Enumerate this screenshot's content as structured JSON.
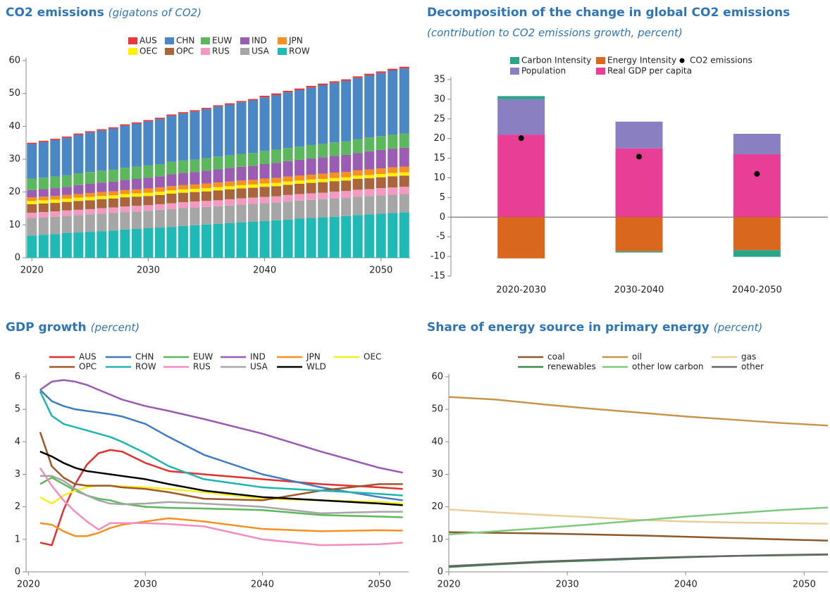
{
  "chart_data": [
    {
      "type": "bar",
      "stacked": true,
      "title": "CO2 emissions",
      "subtitle": "(gigatons of CO2)",
      "x": [
        2020,
        2021,
        2022,
        2023,
        2024,
        2025,
        2026,
        2027,
        2028,
        2029,
        2030,
        2031,
        2032,
        2033,
        2034,
        2035,
        2036,
        2037,
        2038,
        2039,
        2040,
        2041,
        2042,
        2043,
        2044,
        2045,
        2046,
        2047,
        2048,
        2049,
        2050,
        2051,
        2052
      ],
      "xlim": [
        2019.5,
        2052.5
      ],
      "xticks": [
        2020,
        2030,
        2040,
        2050
      ],
      "ylim": [
        0,
        60
      ],
      "yticks": [
        0,
        10,
        20,
        30,
        40,
        50,
        60
      ],
      "series": [
        {
          "name": "AUS",
          "color": "#e8373a",
          "values": [
            0.4,
            0.4,
            0.4,
            0.4,
            0.4,
            0.4,
            0.4,
            0.4,
            0.4,
            0.4,
            0.4,
            0.4,
            0.4,
            0.4,
            0.4,
            0.4,
            0.4,
            0.4,
            0.4,
            0.4,
            0.5,
            0.5,
            0.5,
            0.5,
            0.5,
            0.5,
            0.5,
            0.5,
            0.5,
            0.5,
            0.5,
            0.5,
            0.5
          ]
        },
        {
          "name": "CHN",
          "color": "#4a87c4",
          "values": [
            10.5,
            10.8,
            11.1,
            11.4,
            11.7,
            12.0,
            12.2,
            12.5,
            12.8,
            13.1,
            13.4,
            13.7,
            14.0,
            14.3,
            14.6,
            14.9,
            15.2,
            15.4,
            15.7,
            16.0,
            16.3,
            16.6,
            16.9,
            17.2,
            17.5,
            17.8,
            18.1,
            18.4,
            18.6,
            18.9,
            19.2,
            19.5,
            19.8
          ]
        },
        {
          "name": "EUW",
          "color": "#5cb85c",
          "values": [
            3.5,
            3.5,
            3.5,
            3.5,
            3.6,
            3.6,
            3.6,
            3.6,
            3.7,
            3.7,
            3.7,
            3.7,
            3.8,
            3.8,
            3.8,
            3.8,
            3.9,
            3.9,
            3.9,
            3.9,
            4.0,
            4.0,
            4.0,
            4.0,
            4.1,
            4.1,
            4.1,
            4.1,
            4.2,
            4.2,
            4.2,
            4.3,
            4.3
          ]
        },
        {
          "name": "IND",
          "color": "#9a5db3",
          "values": [
            2.2,
            2.3,
            2.4,
            2.5,
            2.7,
            2.8,
            2.9,
            3.0,
            3.1,
            3.2,
            3.3,
            3.4,
            3.6,
            3.7,
            3.8,
            3.9,
            4.0,
            4.1,
            4.2,
            4.3,
            4.4,
            4.6,
            4.7,
            4.8,
            4.9,
            5.0,
            5.1,
            5.2,
            5.3,
            5.5,
            5.6,
            5.7,
            5.8
          ]
        },
        {
          "name": "JPN",
          "color": "#f7901e",
          "values": [
            1.1,
            1.1,
            1.1,
            1.1,
            1.1,
            1.2,
            1.2,
            1.2,
            1.2,
            1.2,
            1.3,
            1.3,
            1.3,
            1.3,
            1.3,
            1.4,
            1.4,
            1.4,
            1.4,
            1.4,
            1.5,
            1.5,
            1.5,
            1.5,
            1.5,
            1.6,
            1.6,
            1.6,
            1.6,
            1.7,
            1.7,
            1.7,
            1.7
          ]
        },
        {
          "name": "OEC",
          "color": "#fff200",
          "values": [
            1.0,
            1.0,
            1.0,
            1.0,
            1.0,
            1.0,
            1.0,
            1.0,
            1.0,
            1.0,
            1.0,
            1.0,
            1.0,
            1.0,
            1.0,
            1.0,
            1.0,
            1.0,
            1.0,
            1.0,
            1.0,
            1.0,
            1.0,
            1.0,
            1.0,
            1.0,
            1.0,
            1.0,
            1.0,
            1.0,
            1.0,
            1.0,
            1.0
          ]
        },
        {
          "name": "OPC",
          "color": "#a9663e",
          "values": [
            2.6,
            2.6,
            2.6,
            2.6,
            2.7,
            2.7,
            2.7,
            2.7,
            2.8,
            2.8,
            2.8,
            2.8,
            2.9,
            2.9,
            2.9,
            2.9,
            3.0,
            3.0,
            3.0,
            3.0,
            3.1,
            3.1,
            3.1,
            3.1,
            3.2,
            3.2,
            3.2,
            3.2,
            3.3,
            3.3,
            3.3,
            3.4,
            3.4
          ]
        },
        {
          "name": "RUS",
          "color": "#f49ac1",
          "values": [
            1.6,
            1.6,
            1.6,
            1.6,
            1.6,
            1.6,
            1.7,
            1.7,
            1.7,
            1.7,
            1.7,
            1.7,
            1.8,
            1.8,
            1.8,
            1.8,
            1.8,
            1.9,
            1.9,
            1.9,
            1.9,
            1.9,
            2.0,
            2.0,
            2.0,
            2.0,
            2.1,
            2.1,
            2.1,
            2.1,
            2.2,
            2.2,
            2.2
          ]
        },
        {
          "name": "USA",
          "color": "#a6a6a6",
          "values": [
            5.3,
            5.3,
            5.3,
            5.3,
            5.3,
            5.3,
            5.3,
            5.3,
            5.3,
            5.3,
            5.3,
            5.4,
            5.4,
            5.4,
            5.4,
            5.4,
            5.4,
            5.4,
            5.4,
            5.4,
            5.4,
            5.4,
            5.5,
            5.5,
            5.5,
            5.5,
            5.5,
            5.5,
            5.6,
            5.6,
            5.6,
            5.6,
            5.6
          ]
        },
        {
          "name": "ROW",
          "color": "#1fbab6",
          "values": [
            6.8,
            7.0,
            7.2,
            7.5,
            7.7,
            7.9,
            8.1,
            8.3,
            8.6,
            8.8,
            9.0,
            9.2,
            9.4,
            9.7,
            9.9,
            10.1,
            10.3,
            10.5,
            10.8,
            11.0,
            11.2,
            11.4,
            11.6,
            11.9,
            12.1,
            12.3,
            12.5,
            12.7,
            13.0,
            13.2,
            13.4,
            13.6,
            13.8
          ]
        }
      ]
    },
    {
      "type": "bar",
      "stacked": true,
      "title": "Decomposition of the change in global CO2 emissions",
      "subtitle": "(contribution to CO2 emissions growth, percent)",
      "categories": [
        "2020-2030",
        "2030-2040",
        "2040-2050"
      ],
      "ylim": [
        -15,
        35
      ],
      "yticks": [
        -15,
        -10,
        -5,
        0,
        5,
        10,
        15,
        20,
        25,
        30,
        35
      ],
      "series": [
        {
          "name": "Real GDP per capita",
          "color": "#e83e96",
          "values": [
            21.0,
            17.5,
            16.0
          ]
        },
        {
          "name": "Population",
          "color": "#8a7fc0",
          "values": [
            9.0,
            6.8,
            5.2
          ]
        },
        {
          "name": "Energy Intensity",
          "color": "#d9681e",
          "values": [
            -10.5,
            -8.7,
            -8.4
          ]
        },
        {
          "name": "Carbon Intensity",
          "color": "#2aa58a",
          "values": [
            0.8,
            -0.3,
            -1.7
          ]
        }
      ],
      "points": {
        "name": "CO2 emissions",
        "color": "#000000",
        "values": [
          20.1,
          15.4,
          11.0
        ]
      }
    },
    {
      "type": "line",
      "title": "GDP growth",
      "subtitle": "(percent)",
      "x": [
        2021,
        2022,
        2023,
        2024,
        2025,
        2026,
        2027,
        2028,
        2030,
        2032,
        2035,
        2040,
        2045,
        2050,
        2052
      ],
      "xlim": [
        2019.8,
        2052.5
      ],
      "xticks": [
        2020,
        2030,
        2040,
        2050
      ],
      "ylim": [
        0,
        6
      ],
      "yticks": [
        0,
        1,
        2,
        3,
        4,
        5,
        6
      ],
      "series": [
        {
          "name": "AUS",
          "color": "#e2312f",
          "values": [
            0.9,
            0.82,
            1.9,
            2.7,
            3.3,
            3.65,
            3.75,
            3.7,
            3.35,
            3.1,
            3.0,
            2.85,
            2.7,
            2.6,
            2.55
          ]
        },
        {
          "name": "CHN",
          "color": "#3e7cc1",
          "values": [
            5.6,
            5.25,
            5.1,
            5.0,
            4.95,
            4.9,
            4.85,
            4.78,
            4.55,
            4.15,
            3.6,
            3.0,
            2.6,
            2.3,
            2.2
          ]
        },
        {
          "name": "EUW",
          "color": "#5cb85c",
          "values": [
            2.7,
            2.9,
            2.7,
            2.5,
            2.35,
            2.25,
            2.2,
            2.1,
            2.0,
            1.97,
            1.95,
            1.9,
            1.75,
            1.7,
            1.68
          ]
        },
        {
          "name": "IND",
          "color": "#9b59b6",
          "values": [
            5.6,
            5.85,
            5.9,
            5.85,
            5.75,
            5.6,
            5.45,
            5.3,
            5.1,
            4.95,
            4.7,
            4.25,
            3.7,
            3.2,
            3.05
          ]
        },
        {
          "name": "JPN",
          "color": "#f7901e",
          "values": [
            1.5,
            1.45,
            1.25,
            1.1,
            1.1,
            1.2,
            1.35,
            1.45,
            1.55,
            1.65,
            1.55,
            1.32,
            1.25,
            1.28,
            1.27
          ]
        },
        {
          "name": "OEC",
          "color": "#f5f01e",
          "values": [
            2.3,
            2.1,
            2.35,
            2.5,
            2.6,
            2.65,
            2.65,
            2.63,
            2.6,
            2.55,
            2.45,
            2.25,
            2.2,
            2.15,
            2.1
          ]
        },
        {
          "name": "OPC",
          "color": "#a0572b",
          "values": [
            4.3,
            3.25,
            2.9,
            2.7,
            2.65,
            2.65,
            2.65,
            2.6,
            2.55,
            2.45,
            2.25,
            2.2,
            2.5,
            2.7,
            2.7
          ]
        },
        {
          "name": "ROW",
          "color": "#1fb5b0",
          "values": [
            5.55,
            4.8,
            4.55,
            4.45,
            4.35,
            4.25,
            4.15,
            4.0,
            3.65,
            3.25,
            2.85,
            2.6,
            2.5,
            2.4,
            2.35
          ]
        },
        {
          "name": "RUS",
          "color": "#f48cc0",
          "values": [
            3.2,
            2.65,
            2.2,
            1.85,
            1.55,
            1.3,
            1.5,
            1.5,
            1.5,
            1.47,
            1.4,
            1.0,
            0.82,
            0.85,
            0.9
          ]
        },
        {
          "name": "USA",
          "color": "#a6a6a6",
          "values": [
            2.95,
            2.95,
            2.8,
            2.55,
            2.35,
            2.2,
            2.1,
            2.08,
            2.1,
            2.15,
            2.1,
            2.0,
            1.8,
            1.85,
            1.85
          ]
        },
        {
          "name": "WLD",
          "color": "#000000",
          "values": [
            3.7,
            3.55,
            3.35,
            3.2,
            3.1,
            3.05,
            3.0,
            2.95,
            2.85,
            2.7,
            2.5,
            2.3,
            2.2,
            2.1,
            2.05
          ]
        }
      ]
    },
    {
      "type": "line",
      "title": "Share of energy source in primary energy",
      "subtitle": "(percent)",
      "x": [
        2020,
        2024,
        2028,
        2032,
        2036,
        2040,
        2044,
        2048,
        2052
      ],
      "xlim": [
        2020,
        2052
      ],
      "xticks": [
        2020,
        2030,
        2040,
        2050
      ],
      "ylim": [
        0,
        60
      ],
      "yticks": [
        0,
        10,
        20,
        30,
        40,
        50,
        60
      ],
      "series": [
        {
          "name": "coal",
          "color": "#8b5a2b",
          "values": [
            12.2,
            12.0,
            11.8,
            11.5,
            11.2,
            10.8,
            10.4,
            10.0,
            9.6
          ]
        },
        {
          "name": "oil",
          "color": "#c8964b",
          "values": [
            53.8,
            53.0,
            51.5,
            50.2,
            49.0,
            47.8,
            46.8,
            45.8,
            45.0
          ]
        },
        {
          "name": "gas",
          "color": "#e8cf98",
          "values": [
            19.2,
            18.3,
            17.5,
            16.8,
            16.0,
            15.5,
            15.2,
            15.0,
            14.8
          ]
        },
        {
          "name": "renewables",
          "color": "#3a8a4a",
          "values": [
            1.5,
            2.3,
            3.0,
            3.5,
            4.0,
            4.5,
            4.9,
            5.1,
            5.3
          ]
        },
        {
          "name": "other low carbon",
          "color": "#7fc97f",
          "values": [
            11.5,
            12.5,
            13.5,
            14.6,
            15.8,
            17.0,
            18.0,
            19.0,
            19.8
          ]
        },
        {
          "name": "other",
          "color": "#666666",
          "values": [
            1.8,
            2.5,
            3.2,
            3.7,
            4.2,
            4.6,
            4.9,
            5.2,
            5.4
          ]
        }
      ]
    }
  ]
}
